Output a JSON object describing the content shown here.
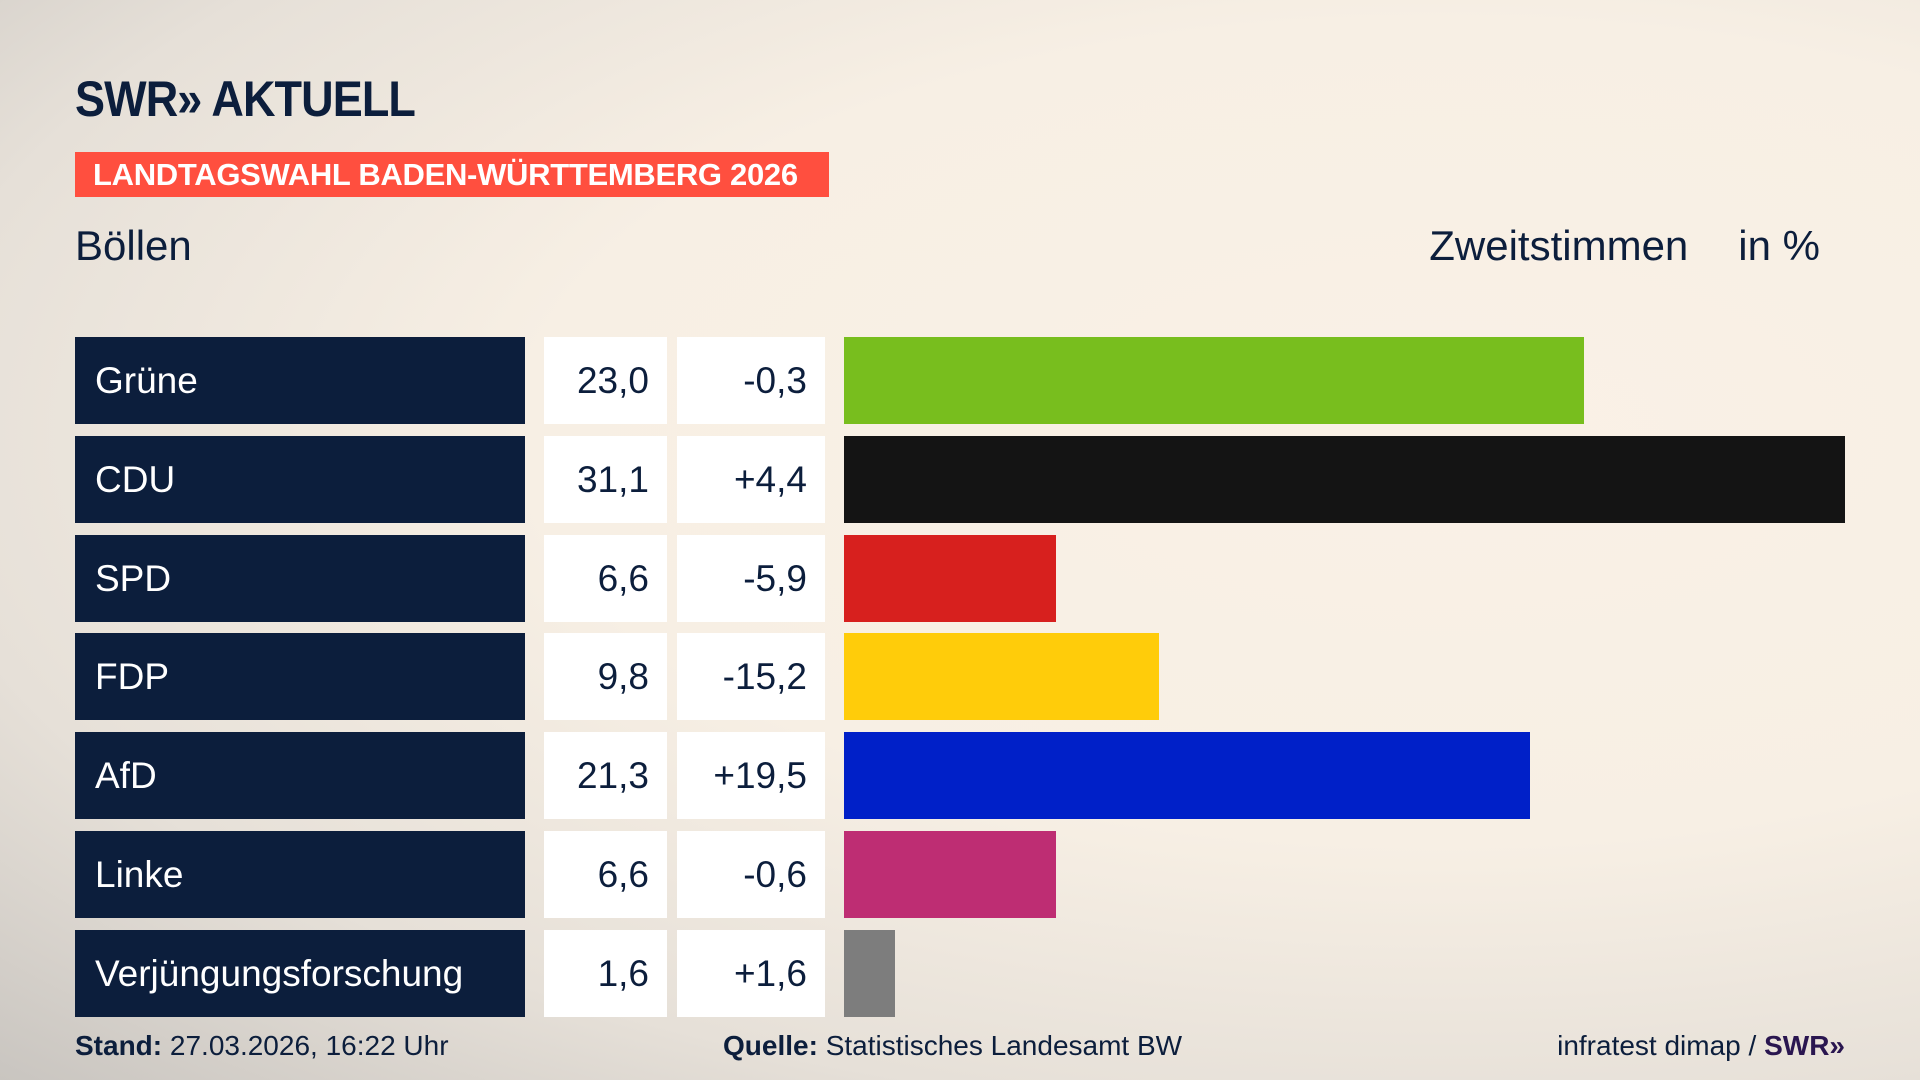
{
  "header": {
    "logo": "SWR» AKTUELL",
    "banner": "LANDTAGSWAHL BADEN-WÜRTTEMBERG 2026",
    "place": "Böllen",
    "metric": "Zweitstimmen",
    "unit": "in %"
  },
  "chart_data": {
    "type": "bar",
    "orientation": "horizontal",
    "categories": [
      "Grüne",
      "CDU",
      "SPD",
      "FDP",
      "AfD",
      "Linke",
      "Verjüngungsforschung"
    ],
    "values": [
      23.0,
      31.1,
      6.6,
      9.8,
      21.3,
      6.6,
      1.6
    ],
    "value_labels": [
      "23,0",
      "31,1",
      "6,6",
      "9,8",
      "21,3",
      "6,6",
      "1,6"
    ],
    "diff_labels": [
      "-0,3",
      "+4,4",
      "-5,9",
      "-15,2",
      "+19,5",
      "-0,6",
      "+1,6"
    ],
    "colors": [
      "#78be1e",
      "#141414",
      "#d7201e",
      "#ffcc0a",
      "#0020c8",
      "#be2d73",
      "#7d7d7d"
    ],
    "xlim": [
      0,
      31.1
    ],
    "grid": false
  },
  "footer": {
    "stand_label": "Stand:",
    "stand_value": "27.03.2026, 16:22 Uhr",
    "source_label": "Quelle:",
    "source_value": "Statistisches Landesamt BW",
    "credit": "infratest dimap / ",
    "credit_logo": "SWR»"
  }
}
